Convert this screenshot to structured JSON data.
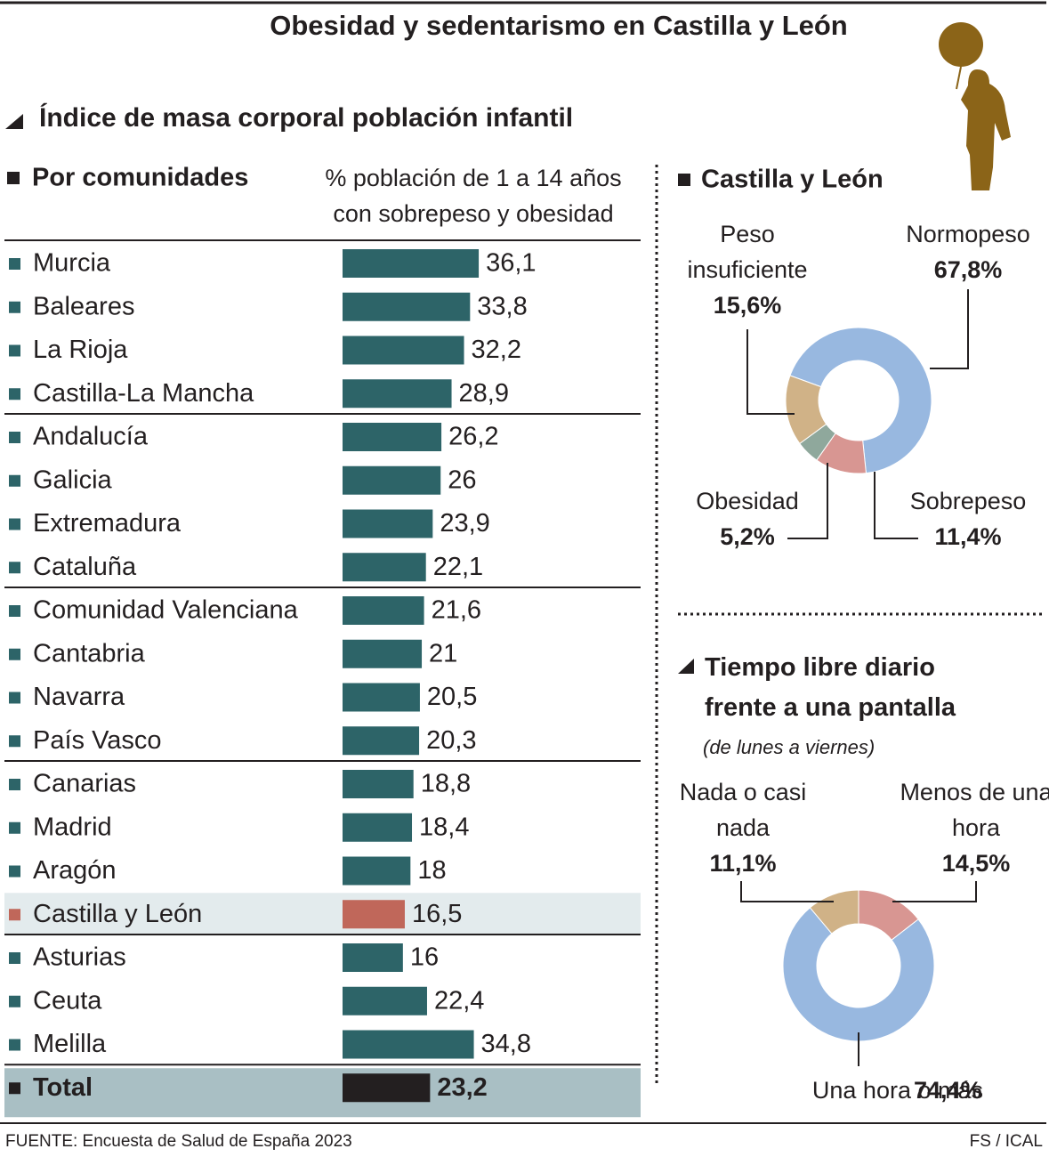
{
  "title": "Obesidad y sedentarismo en Castilla y León",
  "section_title": "Índice de masa corporal población infantil",
  "chart_data": [
    {
      "type": "hbar",
      "title": "Por comunidades",
      "subtitle": "% población de 1 a 14 años con sobrepeso y obesidad",
      "categories": [
        "Murcia",
        "Baleares",
        "La Rioja",
        "Castilla-La Mancha",
        "Andalucía",
        "Galicia",
        "Extremadura",
        "Cataluña",
        "Comunidad Valenciana",
        "Cantabria",
        "Navarra",
        "País Vasco",
        "Canarias",
        "Madrid",
        "Aragón",
        "Castilla y León",
        "Asturias",
        "Ceuta",
        "Melilla",
        "Total"
      ],
      "values": [
        36.1,
        33.8,
        32.2,
        28.9,
        26.2,
        26,
        23.9,
        22.1,
        21.6,
        21,
        20.5,
        20.3,
        18.8,
        18.4,
        18,
        16.5,
        16,
        22.4,
        34.8,
        23.2
      ],
      "value_labels": [
        "36,1",
        "33,8",
        "32,2",
        "28,9",
        "26,2",
        "26",
        "23,9",
        "22,1",
        "21,6",
        "21",
        "20,5",
        "20,3",
        "18,8",
        "18,4",
        "18",
        "16,5",
        "16",
        "22,4",
        "34,8",
        "23,2"
      ],
      "colors": [
        "#2d6468",
        "#2d6468",
        "#2d6468",
        "#2d6468",
        "#2d6468",
        "#2d6468",
        "#2d6468",
        "#2d6468",
        "#2d6468",
        "#2d6468",
        "#2d6468",
        "#2d6468",
        "#2d6468",
        "#2d6468",
        "#2d6468",
        "#c0675a",
        "#2d6468",
        "#2d6468",
        "#2d6468",
        "#231f20"
      ]
    },
    {
      "type": "donut",
      "title": "Castilla y León",
      "categories": [
        "Normopeso",
        "Sobrepeso",
        "Obesidad",
        "Peso insuficiente"
      ],
      "values": [
        67.8,
        11.4,
        5.2,
        15.6
      ],
      "value_labels": [
        "67,8%",
        "11,4%",
        "5,2%",
        "15,6%"
      ],
      "colors": [
        "#98b8e0",
        "#d89692",
        "#8fa89c",
        "#d0b287"
      ]
    },
    {
      "type": "donut",
      "title": "Tiempo libre diario frente a una pantalla",
      "subtitle": "(de lunes a viernes)",
      "categories": [
        "Menos de una hora",
        "Una hora o más",
        "Nada o casi nada"
      ],
      "values": [
        14.5,
        74.4,
        11.1
      ],
      "value_labels": [
        "14,5%",
        "74,4%",
        "11,1%"
      ],
      "colors": [
        "#d89692",
        "#98b8e0",
        "#d0b287"
      ]
    }
  ],
  "source": "FUENTE: Encuesta de Salud de España 2023",
  "credit": "FS / ICAL"
}
